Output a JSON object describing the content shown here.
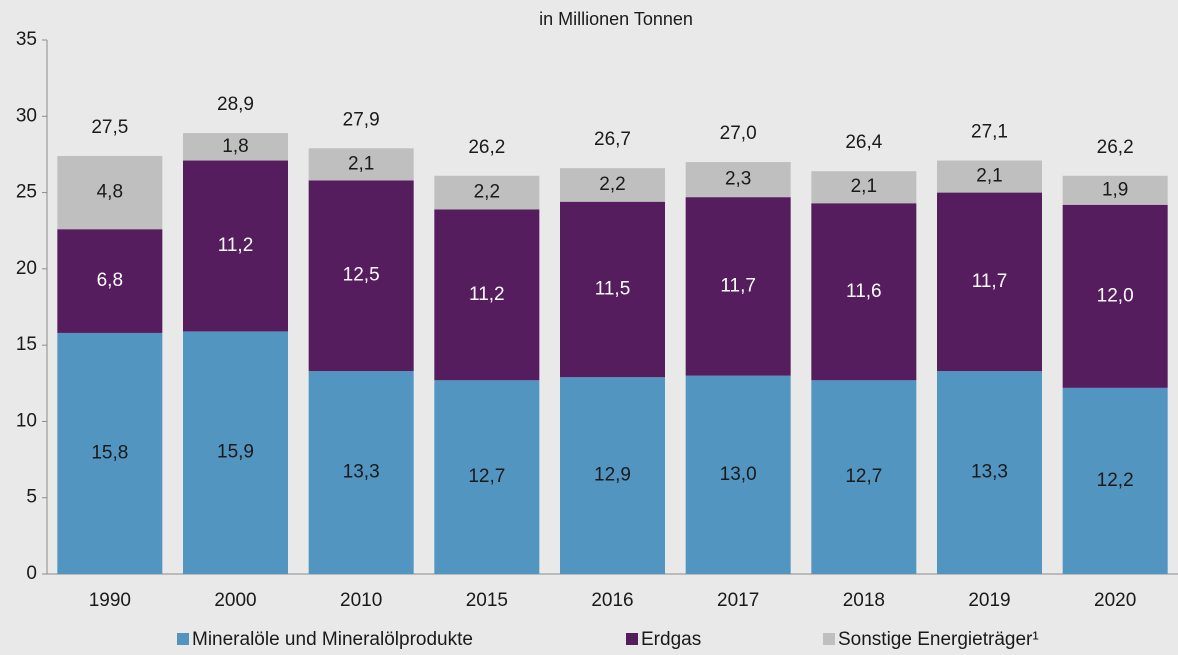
{
  "chart_data": {
    "type": "stacked_bar",
    "subtitle": "in Millionen Tonnen",
    "categories": [
      "1990",
      "2000",
      "2010",
      "2015",
      "2016",
      "2017",
      "2018",
      "2019",
      "2020"
    ],
    "series": [
      {
        "name": "Mineralöle und Mineralölprodukte",
        "color": "#5195c0",
        "values": [
          15.8,
          15.9,
          13.3,
          12.7,
          12.9,
          13.0,
          12.7,
          13.3,
          12.2
        ],
        "value_labels": [
          "15,8",
          "15,9",
          "13,3",
          "12,7",
          "12,9",
          "13,0",
          "12,7",
          "13,3",
          "12,2"
        ]
      },
      {
        "name": "Erdgas",
        "color": "#561d5e",
        "values": [
          6.8,
          11.2,
          12.5,
          11.2,
          11.5,
          11.7,
          11.6,
          11.7,
          12.0
        ],
        "value_labels": [
          "6,8",
          "11,2",
          "12,5",
          "11,2",
          "11,5",
          "11,7",
          "11,6",
          "11,7",
          "12,0"
        ]
      },
      {
        "name": "Sonstige Energieträger¹",
        "color": "#bfbfbf",
        "values": [
          4.8,
          1.8,
          2.1,
          2.2,
          2.2,
          2.3,
          2.1,
          2.1,
          1.9
        ],
        "value_labels": [
          "4,8",
          "1,8",
          "2,1",
          "2,2",
          "2,2",
          "2,3",
          "2,1",
          "2,1",
          "1,9"
        ]
      }
    ],
    "totals": [
      27.5,
      28.9,
      27.9,
      26.2,
      26.7,
      27.0,
      26.4,
      27.1,
      26.2
    ],
    "total_labels": [
      "27,5",
      "28,9",
      "27,9",
      "26,2",
      "26,7",
      "27,0",
      "26,4",
      "27,1",
      "26,2"
    ],
    "ylim": [
      0,
      35
    ],
    "yticks": [
      0,
      5,
      10,
      15,
      20,
      25,
      30,
      35
    ],
    "grid": false
  }
}
